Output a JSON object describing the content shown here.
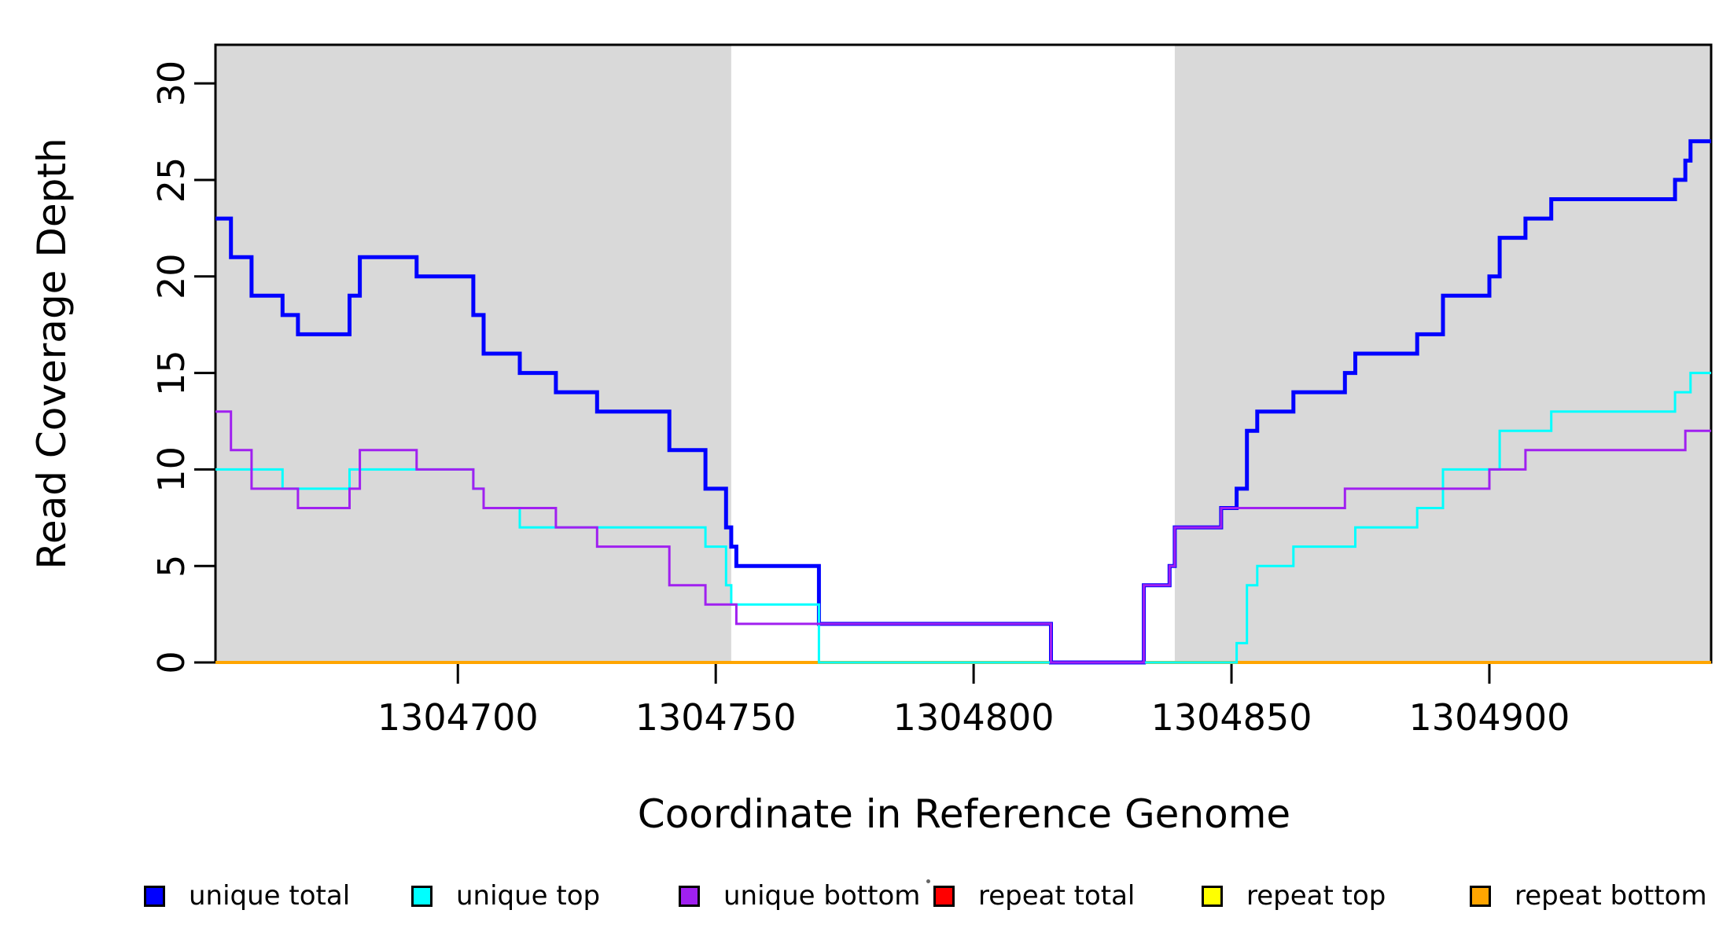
{
  "chart_data": {
    "type": "line",
    "line_style": "step",
    "title": "",
    "xlabel": "Coordinate in Reference Genome",
    "ylabel": "Read Coverage Depth",
    "xlim": [
      1304653,
      1304943
    ],
    "ylim": [
      0,
      32
    ],
    "x_ticks": [
      "1304700",
      "1304750",
      "1304800",
      "1304850",
      "1304900"
    ],
    "x_tick_values": [
      1304700,
      1304750,
      1304800,
      1304850,
      1304900
    ],
    "y_ticks": [
      "0",
      "5",
      "10",
      "15",
      "20",
      "25",
      "30"
    ],
    "y_tick_values": [
      0,
      5,
      10,
      15,
      20,
      25,
      30
    ],
    "grid": false,
    "legend_position": "bottom",
    "plot_border_color": "#000000",
    "background_shading": {
      "color": "#D9D9D9",
      "regions": [
        [
          1304653,
          1304753
        ],
        [
          1304839,
          1304943
        ]
      ]
    },
    "draw_order": [
      3,
      4,
      5,
      0,
      1,
      2
    ],
    "series": [
      {
        "name": "unique total",
        "color": "#0000FF",
        "line_width": 5,
        "steps": [
          [
            1304653,
            23
          ],
          [
            1304656,
            21
          ],
          [
            1304660,
            19
          ],
          [
            1304666,
            18
          ],
          [
            1304669,
            17
          ],
          [
            1304679,
            19
          ],
          [
            1304681,
            21
          ],
          [
            1304692,
            20
          ],
          [
            1304703,
            18
          ],
          [
            1304705,
            16
          ],
          [
            1304712,
            15
          ],
          [
            1304719,
            14
          ],
          [
            1304727,
            13
          ],
          [
            1304741,
            11
          ],
          [
            1304748,
            9
          ],
          [
            1304752,
            7
          ],
          [
            1304753,
            6
          ],
          [
            1304754,
            5
          ],
          [
            1304770,
            2
          ],
          [
            1304815,
            0
          ],
          [
            1304833,
            4
          ],
          [
            1304838,
            5
          ],
          [
            1304839,
            7
          ],
          [
            1304848,
            8
          ],
          [
            1304851,
            9
          ],
          [
            1304853,
            12
          ],
          [
            1304855,
            13
          ],
          [
            1304862,
            14
          ],
          [
            1304872,
            15
          ],
          [
            1304874,
            16
          ],
          [
            1304886,
            17
          ],
          [
            1304891,
            19
          ],
          [
            1304900,
            20
          ],
          [
            1304902,
            22
          ],
          [
            1304907,
            23
          ],
          [
            1304912,
            24
          ],
          [
            1304936,
            25
          ],
          [
            1304938,
            26
          ],
          [
            1304939,
            27
          ]
        ]
      },
      {
        "name": "unique top",
        "color": "#00FFFF",
        "line_width": 3,
        "steps": [
          [
            1304653,
            10
          ],
          [
            1304666,
            9
          ],
          [
            1304679,
            10
          ],
          [
            1304703,
            9
          ],
          [
            1304705,
            8
          ],
          [
            1304712,
            7
          ],
          [
            1304748,
            6
          ],
          [
            1304752,
            4
          ],
          [
            1304753,
            3
          ],
          [
            1304770,
            0
          ],
          [
            1304851,
            1
          ],
          [
            1304853,
            4
          ],
          [
            1304855,
            5
          ],
          [
            1304862,
            6
          ],
          [
            1304874,
            7
          ],
          [
            1304886,
            8
          ],
          [
            1304891,
            10
          ],
          [
            1304902,
            12
          ],
          [
            1304912,
            13
          ],
          [
            1304936,
            14
          ],
          [
            1304939,
            15
          ]
        ]
      },
      {
        "name": "unique bottom",
        "color": "#A020F0",
        "line_width": 3,
        "steps": [
          [
            1304653,
            13
          ],
          [
            1304656,
            11
          ],
          [
            1304660,
            9
          ],
          [
            1304669,
            8
          ],
          [
            1304679,
            9
          ],
          [
            1304681,
            11
          ],
          [
            1304692,
            10
          ],
          [
            1304703,
            9
          ],
          [
            1304705,
            8
          ],
          [
            1304719,
            7
          ],
          [
            1304727,
            6
          ],
          [
            1304741,
            4
          ],
          [
            1304748,
            3
          ],
          [
            1304754,
            2
          ],
          [
            1304815,
            0
          ],
          [
            1304833,
            4
          ],
          [
            1304838,
            5
          ],
          [
            1304839,
            7
          ],
          [
            1304848,
            8
          ],
          [
            1304872,
            9
          ],
          [
            1304900,
            10
          ],
          [
            1304907,
            11
          ],
          [
            1304938,
            12
          ]
        ]
      },
      {
        "name": "repeat total",
        "color": "#FF0000",
        "line_width": 3,
        "steps": [
          [
            1304653,
            0
          ]
        ]
      },
      {
        "name": "repeat top",
        "color": "#FFFF00",
        "line_width": 3,
        "steps": [
          [
            1304653,
            0
          ]
        ]
      },
      {
        "name": "repeat bottom",
        "color": "#FFA500",
        "line_width": 4,
        "steps": [
          [
            1304653,
            0
          ]
        ]
      }
    ]
  }
}
